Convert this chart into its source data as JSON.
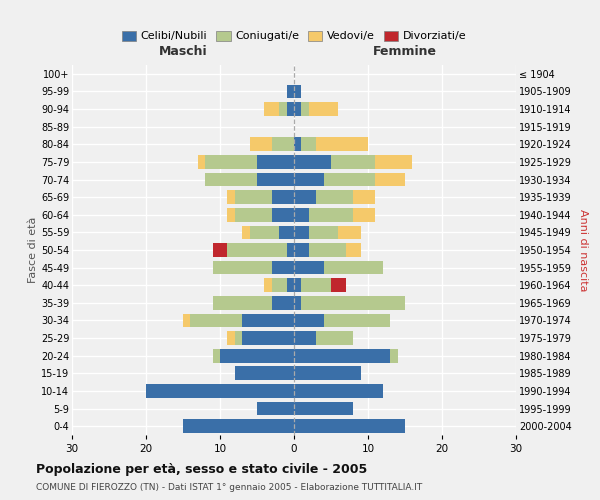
{
  "age_groups": [
    "0-4",
    "5-9",
    "10-14",
    "15-19",
    "20-24",
    "25-29",
    "30-34",
    "35-39",
    "40-44",
    "45-49",
    "50-54",
    "55-59",
    "60-64",
    "65-69",
    "70-74",
    "75-79",
    "80-84",
    "85-89",
    "90-94",
    "95-99",
    "100+"
  ],
  "year_labels": [
    "2000-2004",
    "1995-1999",
    "1990-1994",
    "1985-1989",
    "1980-1984",
    "1975-1979",
    "1970-1974",
    "1965-1969",
    "1960-1964",
    "1955-1959",
    "1950-1954",
    "1945-1949",
    "1940-1944",
    "1935-1939",
    "1930-1934",
    "1925-1929",
    "1920-1924",
    "1915-1919",
    "1910-1914",
    "1905-1909",
    "≤ 1904"
  ],
  "male_celibi": [
    15,
    5,
    20,
    8,
    10,
    7,
    7,
    3,
    1,
    3,
    1,
    2,
    3,
    3,
    5,
    5,
    0,
    0,
    1,
    1,
    0
  ],
  "male_coniugati": [
    0,
    0,
    0,
    0,
    1,
    1,
    7,
    8,
    2,
    8,
    8,
    4,
    5,
    5,
    7,
    7,
    3,
    0,
    1,
    0,
    0
  ],
  "male_vedovi": [
    0,
    0,
    0,
    0,
    0,
    1,
    1,
    0,
    1,
    0,
    0,
    1,
    1,
    1,
    0,
    1,
    3,
    0,
    2,
    0,
    0
  ],
  "male_divorziati": [
    0,
    0,
    0,
    0,
    0,
    0,
    0,
    0,
    0,
    0,
    2,
    0,
    0,
    0,
    0,
    0,
    0,
    0,
    0,
    0,
    0
  ],
  "female_celibi": [
    15,
    8,
    12,
    9,
    13,
    3,
    4,
    1,
    1,
    4,
    2,
    2,
    2,
    3,
    4,
    5,
    1,
    0,
    1,
    1,
    0
  ],
  "female_coniugati": [
    0,
    0,
    0,
    0,
    1,
    5,
    9,
    14,
    4,
    8,
    5,
    4,
    6,
    5,
    7,
    6,
    2,
    0,
    1,
    0,
    0
  ],
  "female_vedovi": [
    0,
    0,
    0,
    0,
    0,
    0,
    0,
    0,
    0,
    0,
    2,
    3,
    3,
    3,
    4,
    5,
    7,
    0,
    4,
    0,
    0
  ],
  "female_divorziati": [
    0,
    0,
    0,
    0,
    0,
    0,
    0,
    0,
    2,
    0,
    0,
    0,
    0,
    0,
    0,
    0,
    0,
    0,
    0,
    0,
    0
  ],
  "colors": {
    "celibi": "#3a6fa8",
    "coniugati": "#b5c98e",
    "vedovi": "#f5c96a",
    "divorziati": "#c0272d"
  },
  "title": "Popolazione per età, sesso e stato civile - 2005",
  "subtitle": "COMUNE DI FIEROZZO (TN) - Dati ISTAT 1° gennaio 2005 - Elaborazione TUTTITALIA.IT",
  "xlabel_left": "Maschi",
  "xlabel_right": "Femmine",
  "ylabel_left": "Fasce di età",
  "ylabel_right": "Anni di nascita",
  "xlim": 30,
  "bg_color": "#f0f0f0",
  "grid_color": "#ffffff"
}
